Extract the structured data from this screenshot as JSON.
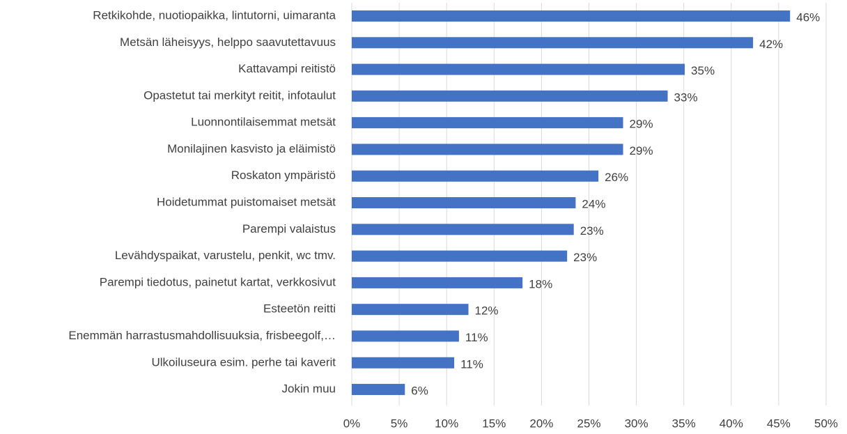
{
  "chart_data": {
    "type": "barh",
    "color": "#4472c4",
    "grid": true,
    "categories": [
      "Retkikohde, nuotiopaikka, lintutorni, uimaranta",
      "Metsän läheisyys, helppo saavutettavuus",
      "Kattavampi reitistö",
      "Opastetut tai merkityt reitit, infotaulut",
      "Luonnontilaisemmat metsät",
      "Monilajinen kasvisto ja eläimistö",
      "Roskaton ympäristö",
      "Hoidetummat puistomaiset metsät",
      "Parempi valaistus",
      "Levähdyspaikat, varustelu, penkit, wc tmv.",
      "Parempi tiedotus, painetut kartat, verkkosivut",
      "Esteetön reitti",
      "Enemmän harrastusmahdollisuuksia, frisbeegolf,…",
      "Ulkoiluseura esim. perhe tai kaverit",
      "Jokin muu"
    ],
    "values": [
      46.2,
      42.3,
      35.1,
      33.3,
      28.6,
      28.6,
      26.0,
      23.6,
      23.4,
      22.7,
      18.0,
      12.3,
      11.3,
      10.8,
      5.6
    ],
    "value_labels": [
      "46%",
      "42%",
      "35%",
      "33%",
      "29%",
      "29%",
      "26%",
      "24%",
      "23%",
      "23%",
      "18%",
      "12%",
      "11%",
      "11%",
      "6%"
    ],
    "xlim": [
      0,
      50
    ],
    "xticks": [
      {
        "value": 0,
        "label": "0%"
      },
      {
        "value": 5,
        "label": "5%"
      },
      {
        "value": 10,
        "label": "10%"
      },
      {
        "value": 15,
        "label": "15%"
      },
      {
        "value": 20,
        "label": "20%"
      },
      {
        "value": 25,
        "label": "25%"
      },
      {
        "value": 30,
        "label": "30%"
      },
      {
        "value": 35,
        "label": "35%"
      },
      {
        "value": 40,
        "label": "40%"
      },
      {
        "value": 45,
        "label": "45%"
      },
      {
        "value": 50,
        "label": "50%"
      }
    ]
  }
}
